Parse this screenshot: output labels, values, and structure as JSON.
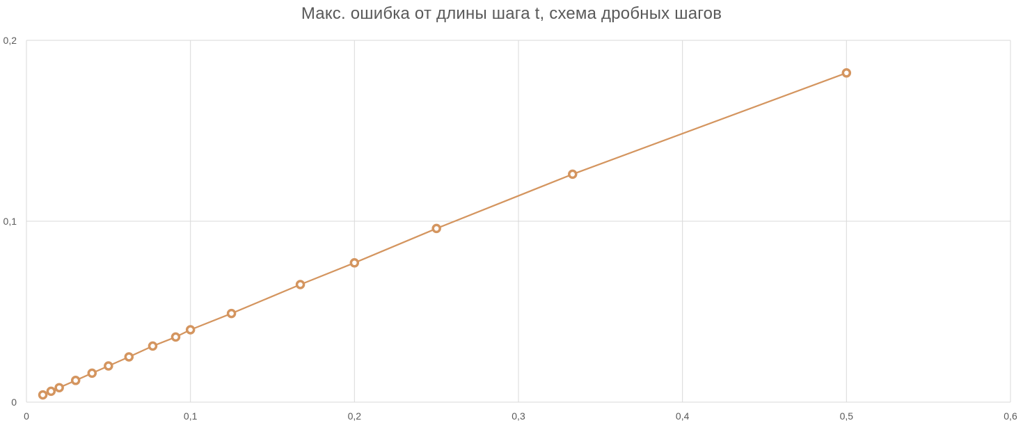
{
  "chart_data": {
    "type": "scatter",
    "title": "Макс. ошибка от длины шага t, схема дробных шагов",
    "xlabel": "",
    "ylabel": "",
    "xlim": [
      0,
      0.6
    ],
    "ylim": [
      0,
      0.2
    ],
    "x_ticks": [
      0,
      0.1,
      0.2,
      0.3,
      0.4,
      0.5,
      0.6
    ],
    "x_tick_labels": [
      "0",
      "0,1",
      "0,2",
      "0,3",
      "0,4",
      "0,5",
      "0,6"
    ],
    "y_ticks": [
      0,
      0.1,
      0.2
    ],
    "y_tick_labels": [
      "0",
      "0,1",
      "0,2"
    ],
    "grid": true,
    "legend": "none",
    "series": [
      {
        "color": "#D4955F",
        "x": [
          0.01,
          0.015,
          0.02,
          0.03,
          0.04,
          0.05,
          0.0625,
          0.077,
          0.091,
          0.1,
          0.125,
          0.167,
          0.2,
          0.25,
          0.333,
          0.5
        ],
        "y": [
          0.004,
          0.006,
          0.008,
          0.012,
          0.016,
          0.02,
          0.025,
          0.031,
          0.036,
          0.04,
          0.049,
          0.065,
          0.077,
          0.096,
          0.126,
          0.182
        ]
      }
    ]
  }
}
